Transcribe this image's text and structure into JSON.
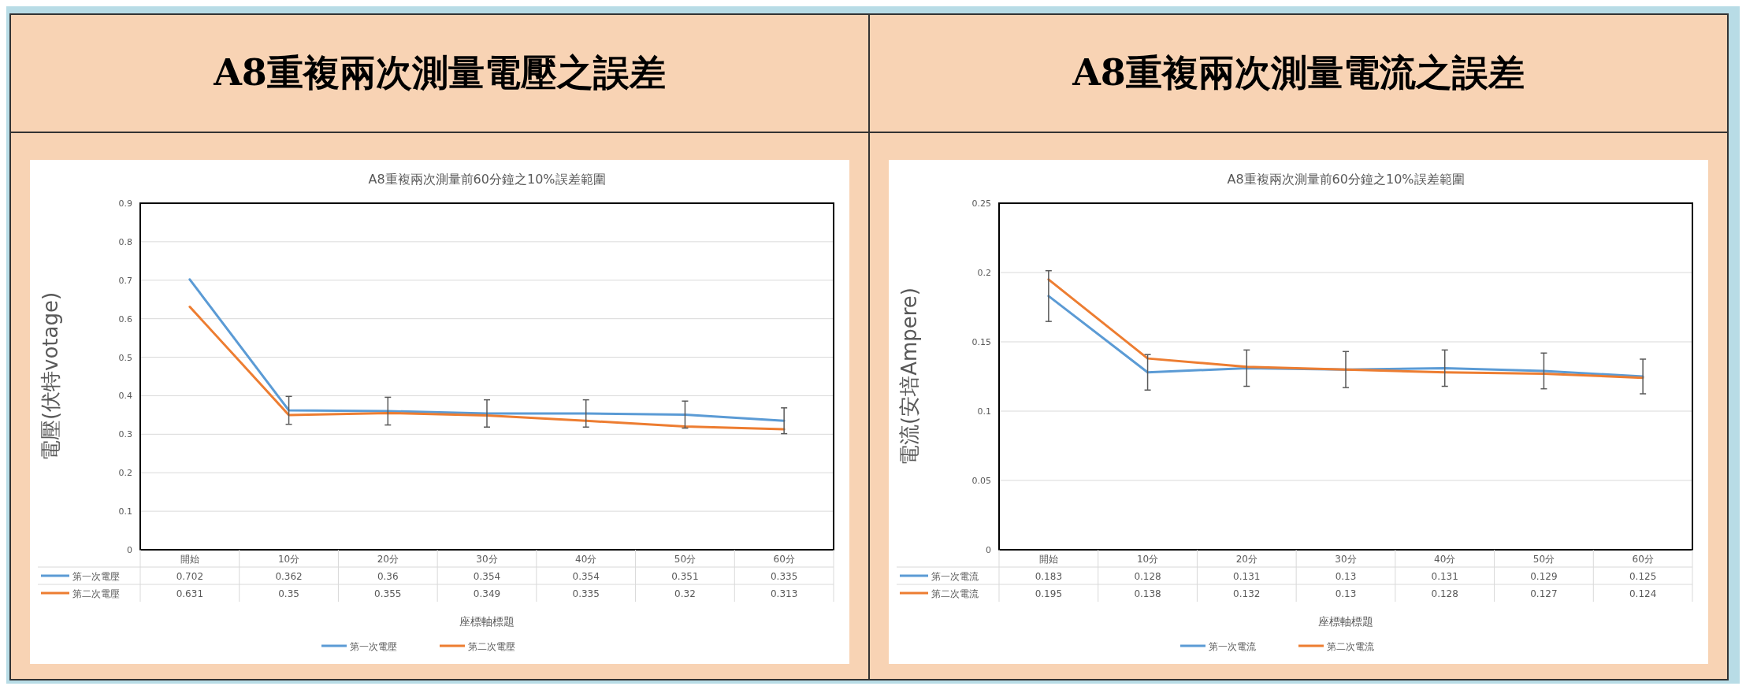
{
  "chart_data": [
    {
      "type": "line",
      "title": "A8重複兩次測量電壓之誤差",
      "subtitle": "A8重複兩次測量前60分鐘之10%誤差範圍",
      "xlabel": "座標軸標題",
      "ylabel": "電壓(伏特votage)",
      "categories": [
        "開始",
        "10分",
        "20分",
        "30分",
        "40分",
        "50分",
        "60分"
      ],
      "series": [
        {
          "name": "第一次電壓",
          "color": "#5b9bd5",
          "values": [
            0.702,
            0.362,
            0.36,
            0.354,
            0.354,
            0.351,
            0.335
          ],
          "errors": [
            null,
            0.0362,
            0.036,
            0.0354,
            0.0354,
            0.0351,
            0.0335
          ]
        },
        {
          "name": "第二次電壓",
          "color": "#ed7d31",
          "values": [
            0.631,
            0.35,
            0.355,
            0.349,
            0.335,
            0.32,
            0.313
          ]
        }
      ],
      "ylim": [
        0,
        0.9
      ],
      "yticks": [
        0,
        0.1,
        0.2,
        0.3,
        0.4,
        0.5,
        0.6,
        0.7,
        0.8,
        0.9
      ],
      "grid": "y",
      "legend": "bottom",
      "data_labels": true,
      "marker": "none"
    },
    {
      "type": "line",
      "title": "A8重複兩次測量電流之誤差",
      "subtitle": "A8重複兩次測量前60分鐘之10%誤差範圍",
      "xlabel": "座標軸標題",
      "ylabel": "電流(安培Ampere)",
      "categories": [
        "開始",
        "10分",
        "20分",
        "30分",
        "40分",
        "50分",
        "60分"
      ],
      "series": [
        {
          "name": "第一次電流",
          "color": "#5b9bd5",
          "values": [
            0.183,
            0.128,
            0.131,
            0.13,
            0.131,
            0.129,
            0.125
          ],
          "errors": [
            0.0183,
            0.0128,
            0.0131,
            0.013,
            0.0131,
            0.0129,
            0.0125
          ]
        },
        {
          "name": "第二次電流",
          "color": "#ed7d31",
          "values": [
            0.195,
            0.138,
            0.132,
            0.13,
            0.128,
            0.127,
            0.124
          ]
        }
      ],
      "ylim": [
        0,
        0.25
      ],
      "yticks": [
        0,
        0.05,
        0.1,
        0.15,
        0.2,
        0.25
      ],
      "grid": "y",
      "legend": "bottom",
      "data_labels": true,
      "marker": "none"
    }
  ]
}
